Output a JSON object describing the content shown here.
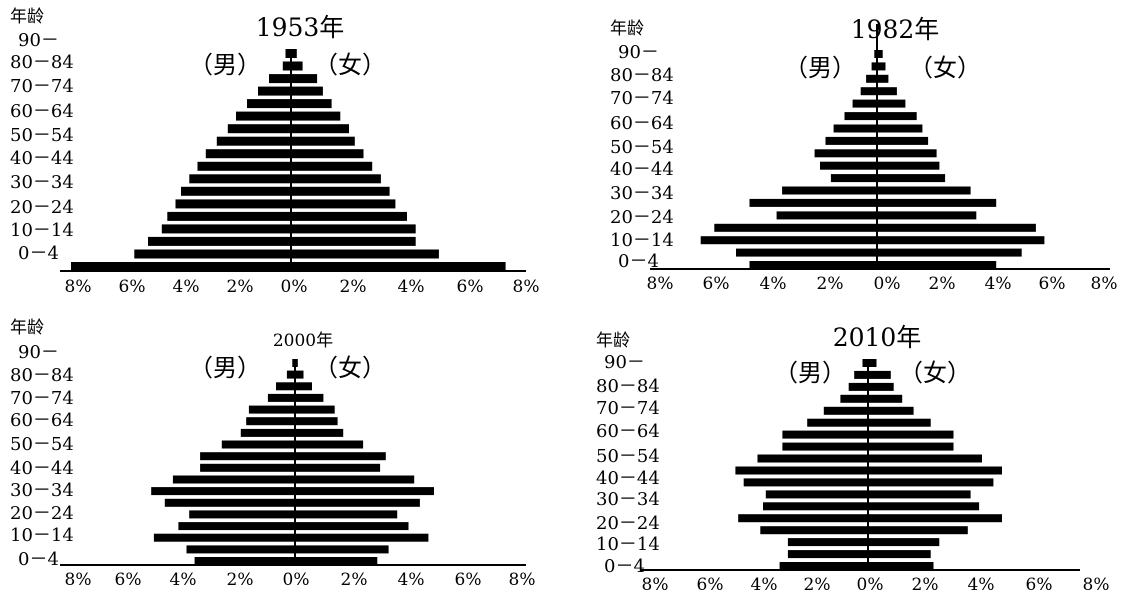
{
  "chart_data": [
    {
      "type": "bar",
      "title": "1953年",
      "ylabel": "年龄",
      "male_label": "（男）",
      "female_label": "（女）",
      "age_labels": [
        "90－",
        "80－84",
        "70－74",
        "60－64",
        "50－54",
        "40－44",
        "30－34",
        "20－24",
        "10－14",
        "0－4"
      ],
      "xtick_labels": [
        "8%",
        "6%",
        "4%",
        "2%",
        "0%",
        "2%",
        "4%",
        "6%",
        "8%"
      ],
      "xlim": [
        -8,
        8
      ],
      "groups": 18,
      "series": [
        {
          "name": "男",
          "values": [
            8.0,
            5.7,
            5.2,
            4.7,
            4.5,
            4.2,
            4.0,
            3.7,
            3.4,
            3.1,
            2.7,
            2.3,
            2.0,
            1.6,
            1.2,
            0.8,
            0.3,
            0.2
          ]
        },
        {
          "name": "女",
          "values": [
            7.4,
            5.1,
            4.3,
            4.3,
            4.0,
            3.6,
            3.4,
            3.1,
            2.8,
            2.5,
            2.2,
            2.0,
            1.7,
            1.4,
            1.1,
            0.9,
            0.4,
            0.2
          ]
        }
      ]
    },
    {
      "type": "bar",
      "title": "1982年",
      "ylabel": "年龄",
      "male_label": "（男）",
      "female_label": "（女）",
      "age_labels": [
        "90－",
        "80－84",
        "70－74",
        "60－64",
        "50－54",
        "40－44",
        "30－34",
        "20－24",
        "10－14",
        "0－4"
      ],
      "xtick_labels": [
        "8%",
        "6%",
        "4%",
        "2%",
        "0%",
        "2%",
        "4%",
        "6%",
        "8%"
      ],
      "xlim": [
        -8,
        8
      ],
      "groups": 18,
      "series": [
        {
          "name": "男",
          "values": [
            4.7,
            5.2,
            6.5,
            6.0,
            3.7,
            4.7,
            3.5,
            1.7,
            2.1,
            2.3,
            1.9,
            1.6,
            1.2,
            0.9,
            0.6,
            0.4,
            0.2,
            0.1
          ]
        },
        {
          "name": "女",
          "values": [
            4.2,
            5.1,
            5.9,
            5.6,
            3.5,
            4.2,
            3.3,
            2.4,
            2.2,
            2.1,
            1.8,
            1.6,
            1.4,
            1.0,
            0.7,
            0.4,
            0.3,
            0.2
          ]
        }
      ]
    },
    {
      "type": "bar",
      "title": "2000年",
      "ylabel": "年龄",
      "male_label": "（男）",
      "female_label": "（女）",
      "age_labels": [
        "90－",
        "80－84",
        "70－74",
        "60－64",
        "50－54",
        "40－44",
        "30－34",
        "20－24",
        "10－14",
        "0－4"
      ],
      "xtick_labels": [
        "8%",
        "6%",
        "4%",
        "2%",
        "0%",
        "2%",
        "4%",
        "6%",
        "8%"
      ],
      "xlim": [
        -8,
        8
      ],
      "groups": 18,
      "series": [
        {
          "name": "男",
          "values": [
            3.7,
            4.0,
            5.2,
            4.3,
            3.9,
            4.8,
            5.3,
            4.5,
            3.5,
            3.5,
            2.7,
            2.0,
            1.8,
            1.7,
            1.0,
            0.7,
            0.3,
            0.1
          ]
        },
        {
          "name": "女",
          "values": [
            2.9,
            3.3,
            4.7,
            4.0,
            3.6,
            4.4,
            4.9,
            4.2,
            3.0,
            3.2,
            2.4,
            1.7,
            1.5,
            1.4,
            1.0,
            0.6,
            0.3,
            0.1
          ]
        }
      ]
    },
    {
      "type": "bar",
      "title": "2010年",
      "ylabel": "年龄",
      "male_label": "（男）",
      "female_label": "（女）",
      "age_labels": [
        "90－",
        "80－84",
        "70－74",
        "60－64",
        "50－54",
        "40－44",
        "30－34",
        "20－24",
        "10－14",
        "0－4"
      ],
      "xtick_labels": [
        "8%",
        "6%",
        "4%",
        "2%",
        "0%",
        "2%",
        "4%",
        "6%",
        "8%"
      ],
      "xlim": [
        -8,
        8
      ],
      "groups": 18,
      "series": [
        {
          "name": "男",
          "values": [
            3.2,
            2.9,
            2.9,
            3.9,
            4.7,
            3.8,
            3.7,
            4.5,
            4.8,
            4.0,
            3.1,
            3.1,
            2.2,
            1.6,
            1.0,
            0.7,
            0.5,
            0.2
          ]
        },
        {
          "name": "女",
          "values": [
            2.3,
            2.2,
            2.5,
            3.5,
            4.7,
            3.9,
            3.6,
            4.4,
            4.7,
            4.0,
            3.0,
            3.0,
            2.2,
            1.6,
            1.2,
            0.9,
            0.8,
            0.3
          ]
        }
      ]
    }
  ]
}
